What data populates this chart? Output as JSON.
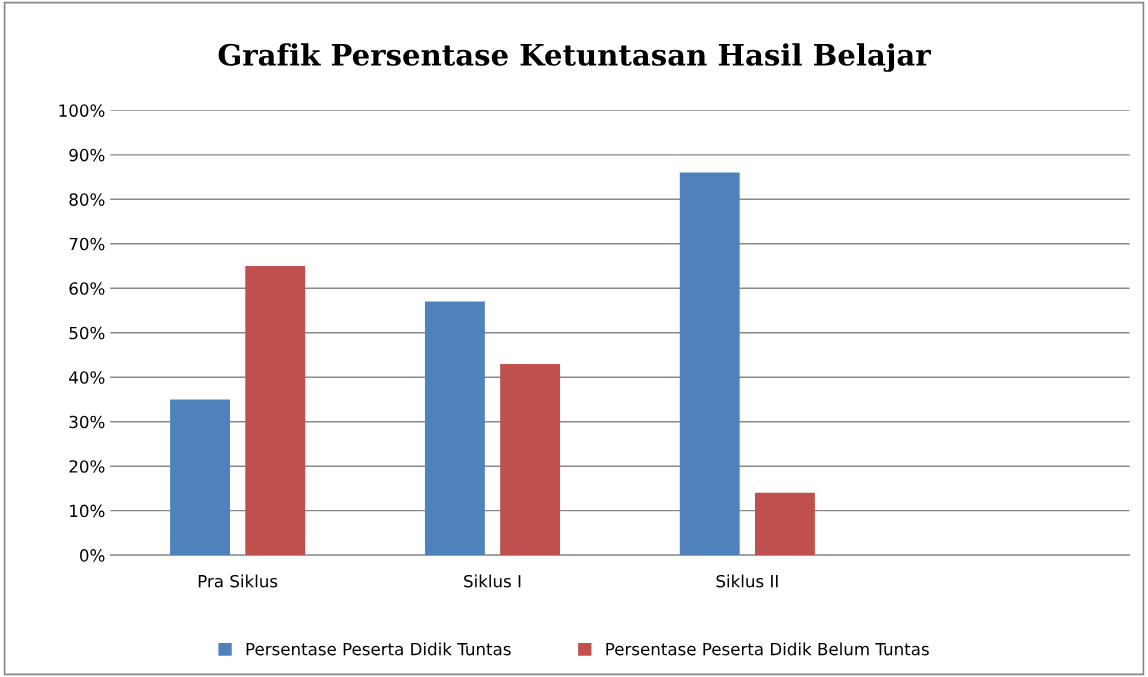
{
  "chart_data": {
    "type": "bar",
    "title": "Grafik Persentase Ketuntasan Hasil Belajar",
    "categories": [
      "Pra Siklus",
      "Siklus I",
      "Siklus II",
      null
    ],
    "series": [
      {
        "name": "Persentase Peserta Didik Tuntas",
        "color": "#4f81bd",
        "values": [
          35,
          57,
          86,
          null
        ]
      },
      {
        "name": "Persentase Peserta Didik Belum Tuntas",
        "color": "#c0504d",
        "values": [
          65,
          43,
          14,
          null
        ]
      }
    ],
    "ylim": [
      0,
      100
    ],
    "yticks": [
      {
        "value": 0,
        "label": "0%"
      },
      {
        "value": 10,
        "label": "10%"
      },
      {
        "value": 20,
        "label": "20%"
      },
      {
        "value": 30,
        "label": "30%"
      },
      {
        "value": 40,
        "label": "40%"
      },
      {
        "value": 50,
        "label": "50%"
      },
      {
        "value": 60,
        "label": "60%"
      },
      {
        "value": 70,
        "label": "70%"
      },
      {
        "value": 80,
        "label": "80%"
      },
      {
        "value": 90,
        "label": "90%"
      },
      {
        "value": 100,
        "label": "100%"
      }
    ],
    "grid": "y",
    "legend": "bottom"
  }
}
